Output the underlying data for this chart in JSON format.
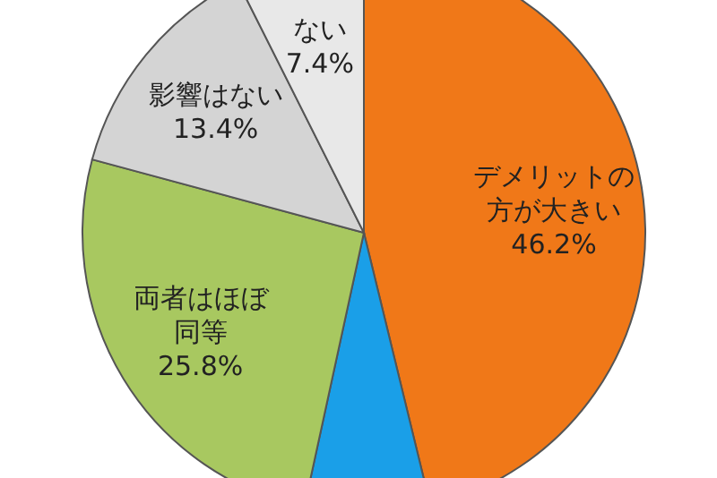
{
  "chart_data": {
    "type": "pie",
    "categories": [
      "デメリットの方が大きい",
      null,
      "両者はほぼ同等",
      "影響はない",
      "ない"
    ],
    "values": [
      46.2,
      7.2,
      25.8,
      13.4,
      7.4
    ],
    "value_labels": [
      "46.2%",
      null,
      "25.8%",
      "13.4%",
      "7.4%"
    ],
    "colors": [
      "#f07818",
      "#1a9fe8",
      "#a8c860",
      "#d4d4d4",
      "#e8e8e8"
    ]
  }
}
